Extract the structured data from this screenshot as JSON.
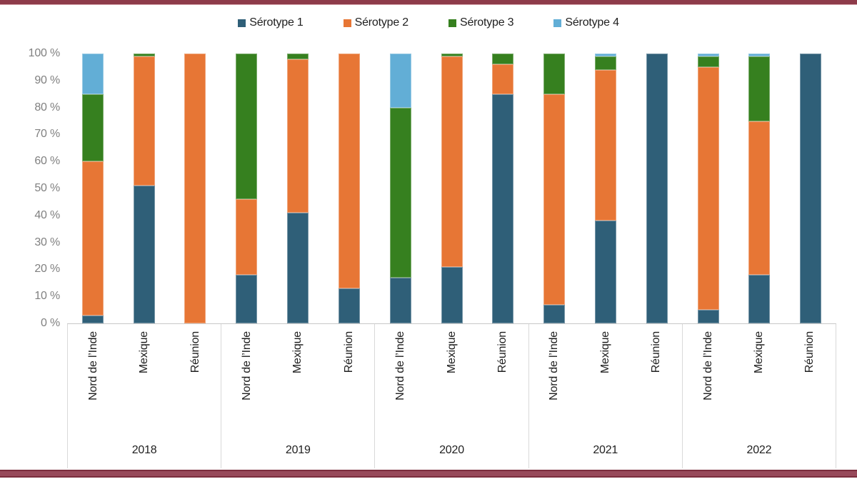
{
  "page": {
    "background": "#ffffff",
    "accent_bar_color": "#8e3b4a"
  },
  "legend": {
    "position": "top",
    "items": [
      {
        "label": "Sérotype 1",
        "color": "#2f5f78"
      },
      {
        "label": "Sérotype 2",
        "color": "#e77635"
      },
      {
        "label": "Sérotype 3",
        "color": "#36801f"
      },
      {
        "label": "Sérotype 4",
        "color": "#62aed6"
      }
    ]
  },
  "chart_data": {
    "type": "bar",
    "stacked": true,
    "stacked_to_100_percent": true,
    "unit": "%",
    "title": "",
    "xlabel": "",
    "ylabel": "",
    "ylim": [
      0,
      100
    ],
    "grid": false,
    "legend_position": "top",
    "y_ticks": [
      "100 %",
      "90 %",
      "80 %",
      "70 %",
      "60 %",
      "50 %",
      "40 %",
      "30 %",
      "20 %",
      "10 %",
      "0 %"
    ],
    "series_names": [
      "Sérotype 1",
      "Sérotype 2",
      "Sérotype 3",
      "Sérotype 4"
    ],
    "series_colors": [
      "#2f5f78",
      "#e77635",
      "#36801f",
      "#62aed6"
    ],
    "groups": [
      {
        "year": "2018",
        "bars": [
          {
            "region": "Nord de l’Inde",
            "values": [
              3,
              57,
              25,
              15
            ]
          },
          {
            "region": "Mexique",
            "values": [
              51,
              48,
              1,
              0
            ]
          },
          {
            "region": "Réunion",
            "values": [
              0,
              100,
              0,
              0
            ]
          }
        ]
      },
      {
        "year": "2019",
        "bars": [
          {
            "region": "Nord de l’Inde",
            "values": [
              18,
              28,
              54,
              0
            ]
          },
          {
            "region": "Mexique",
            "values": [
              41,
              57,
              2,
              0
            ]
          },
          {
            "region": "Réunion",
            "values": [
              13,
              87,
              0,
              0
            ]
          }
        ]
      },
      {
        "year": "2020",
        "bars": [
          {
            "region": "Nord de l’Inde",
            "values": [
              17,
              0,
              63,
              20
            ]
          },
          {
            "region": "Mexique",
            "values": [
              21,
              78,
              1,
              0
            ]
          },
          {
            "region": "Réunion",
            "values": [
              85,
              11,
              4,
              0
            ]
          }
        ]
      },
      {
        "year": "2021",
        "bars": [
          {
            "region": "Nord de l’Inde",
            "values": [
              7,
              78,
              15,
              0
            ]
          },
          {
            "region": "Mexique",
            "values": [
              38,
              56,
              5,
              1
            ]
          },
          {
            "region": "Réunion",
            "values": [
              100,
              0,
              0,
              0
            ]
          }
        ]
      },
      {
        "year": "2022",
        "bars": [
          {
            "region": "Nord de l’Inde",
            "values": [
              5,
              90,
              4,
              1
            ]
          },
          {
            "region": "Mexique",
            "values": [
              18,
              57,
              24,
              1
            ]
          },
          {
            "region": "Réunion",
            "values": [
              100,
              0,
              0,
              0
            ]
          }
        ]
      }
    ]
  }
}
